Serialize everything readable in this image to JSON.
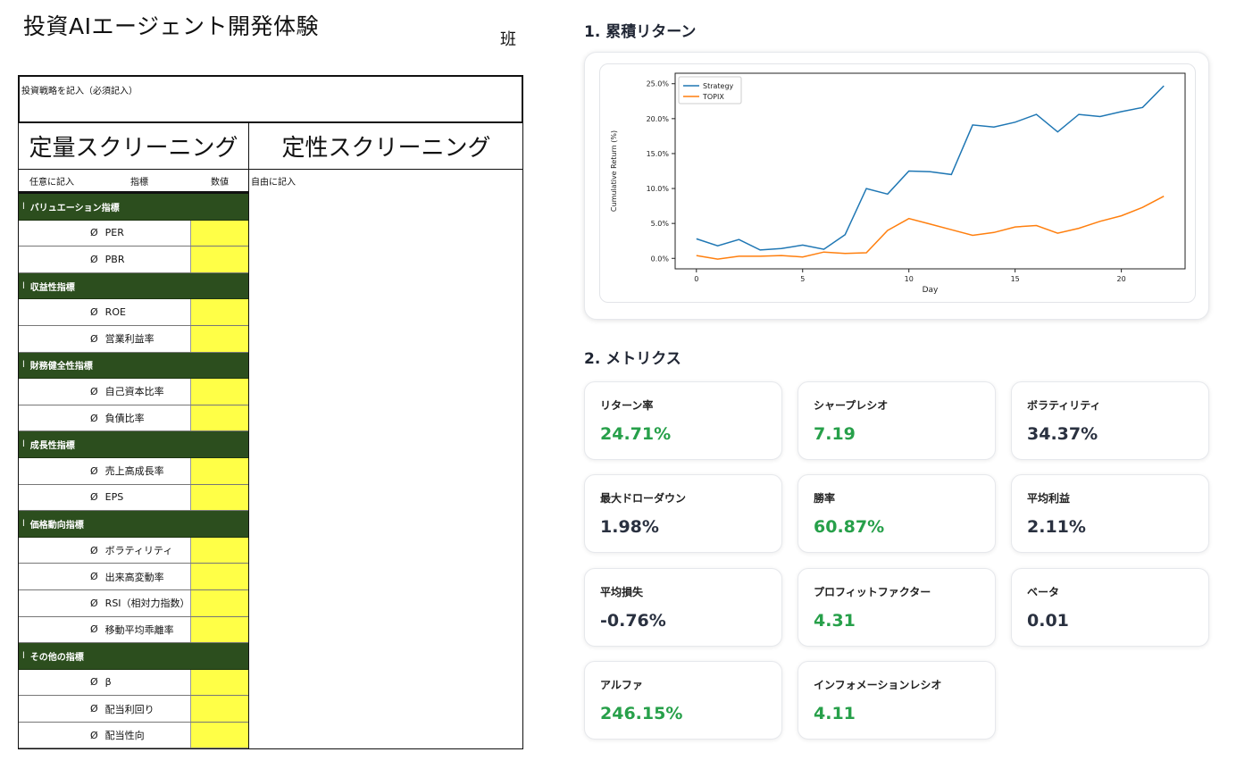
{
  "worksheet": {
    "title": "投資AIエージェント開発体験",
    "team_label": "班",
    "strategy_label": "投資戦略を記入（必須記入）",
    "quant_header": "定量スクリーニング",
    "qual_header": "定性スクリーニング",
    "sub_free": "任意に記入",
    "sub_metric": "指標",
    "sub_value": "数値",
    "qual_note": "自由に記入",
    "bullet": "Ø",
    "cat_mark": "l",
    "categories": [
      {
        "name": "バリュエーション指標",
        "items": [
          "PER",
          "PBR"
        ]
      },
      {
        "name": "収益性指標",
        "items": [
          "ROE",
          "営業利益率"
        ]
      },
      {
        "name": "財務健全性指標",
        "items": [
          "自己資本比率",
          "負債比率"
        ]
      },
      {
        "name": "成長性指標",
        "items": [
          "売上高成長率",
          "EPS"
        ]
      },
      {
        "name": "価格動向指標",
        "items": [
          "ボラティリティ",
          "出来高変動率",
          "RSI（相対力指数）",
          "移動平均乖離率"
        ]
      },
      {
        "name": "その他の指標",
        "items": [
          "β",
          "配当利回り",
          "配当性向"
        ]
      }
    ]
  },
  "dashboard": {
    "section1_title": "1. 累積リターン",
    "section2_title": "2. メトリクス",
    "colors": {
      "positive": "#27a04a",
      "neutral": "#2a3140",
      "strategy": "#1f77b4",
      "topix": "#ff7f0e"
    },
    "metrics": [
      {
        "label": "リターン率",
        "value": "24.71%",
        "tone": "pos"
      },
      {
        "label": "シャープレシオ",
        "value": "7.19",
        "tone": "pos"
      },
      {
        "label": "ボラティリティ",
        "value": "34.37%",
        "tone": "neu"
      },
      {
        "label": "最大ドローダウン",
        "value": "1.98%",
        "tone": "neu"
      },
      {
        "label": "勝率",
        "value": "60.87%",
        "tone": "pos"
      },
      {
        "label": "平均利益",
        "value": "2.11%",
        "tone": "neu"
      },
      {
        "label": "平均損失",
        "value": "-0.76%",
        "tone": "neu"
      },
      {
        "label": "プロフィットファクター",
        "value": "4.31",
        "tone": "pos"
      },
      {
        "label": "ベータ",
        "value": "0.01",
        "tone": "neu"
      },
      {
        "label": "アルファ",
        "value": "246.15%",
        "tone": "pos"
      },
      {
        "label": "インフォメーションレシオ",
        "value": "4.11",
        "tone": "pos"
      }
    ]
  },
  "chart_data": {
    "type": "line",
    "title": "",
    "xlabel": "Day",
    "ylabel": "Cumulative Return (%)",
    "xlim": [
      -1,
      23
    ],
    "ylim": [
      -1.5,
      26.5
    ],
    "x_ticks": [
      0,
      5,
      10,
      15,
      20
    ],
    "y_ticks": [
      0,
      5,
      10,
      15,
      20,
      25
    ],
    "y_tick_labels": [
      "0.0%",
      "5.0%",
      "10.0%",
      "15.0%",
      "20.0%",
      "25.0%"
    ],
    "legend_position": "top-left",
    "grid": false,
    "x": [
      0,
      1,
      2,
      3,
      4,
      5,
      6,
      7,
      8,
      9,
      10,
      11,
      12,
      13,
      14,
      15,
      16,
      17,
      18,
      19,
      20,
      21,
      22
    ],
    "series": [
      {
        "name": "Strategy",
        "color": "#1f77b4",
        "values": [
          2.8,
          1.8,
          2.7,
          1.2,
          1.4,
          1.9,
          1.3,
          3.4,
          10.0,
          9.2,
          12.5,
          12.4,
          12.0,
          19.1,
          18.8,
          19.5,
          20.6,
          18.1,
          20.6,
          20.3,
          21.0,
          21.6,
          24.7
        ]
      },
      {
        "name": "TOPIX",
        "color": "#ff7f0e",
        "values": [
          0.4,
          -0.1,
          0.3,
          0.3,
          0.4,
          0.2,
          0.9,
          0.7,
          0.8,
          4.0,
          5.7,
          4.9,
          4.1,
          3.3,
          3.7,
          4.5,
          4.7,
          3.6,
          4.3,
          5.3,
          6.1,
          7.3,
          8.9
        ]
      }
    ]
  }
}
